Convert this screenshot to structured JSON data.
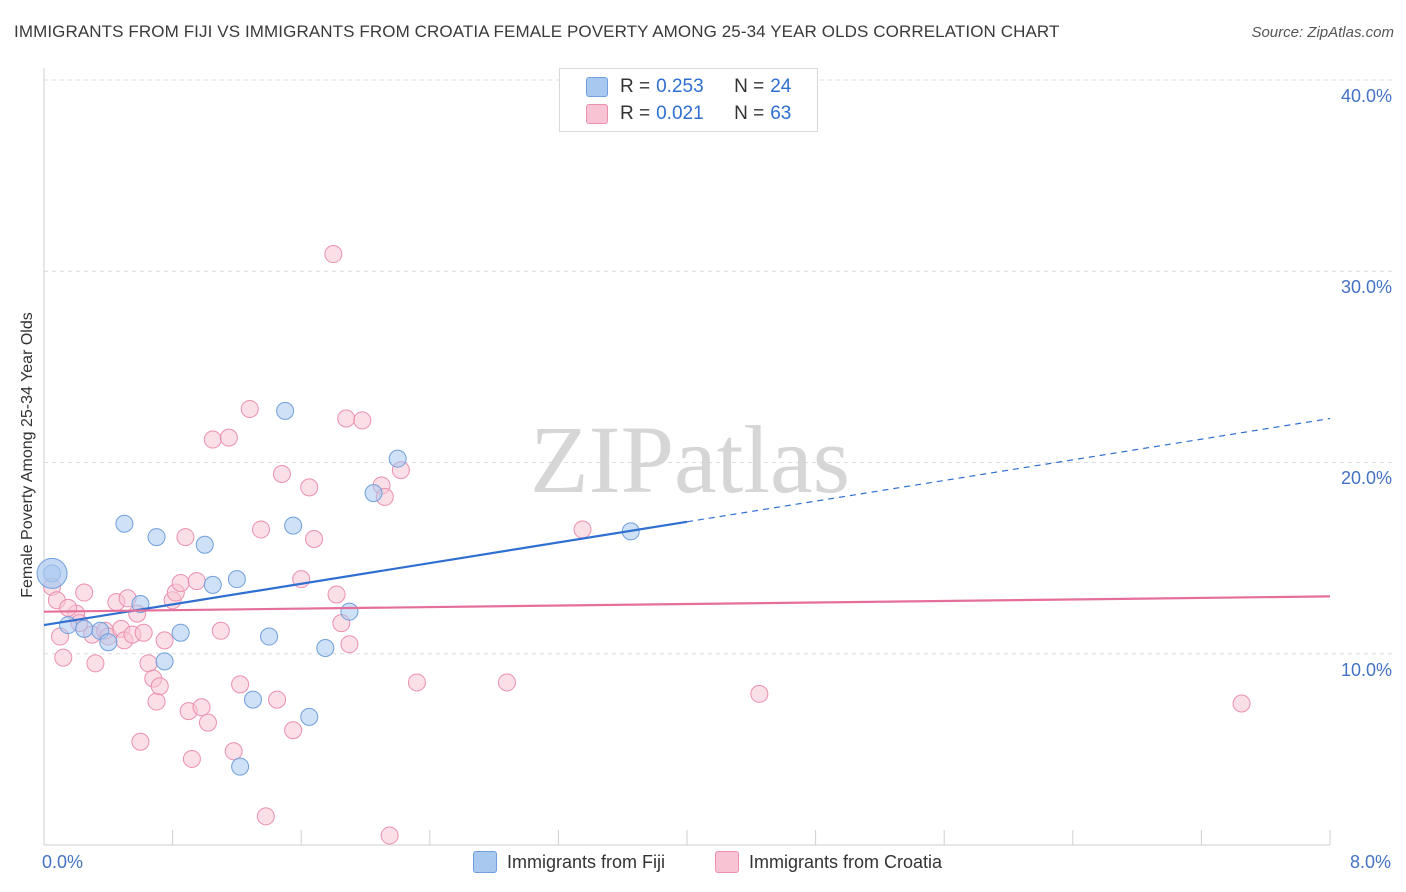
{
  "chart_data": {
    "type": "scatter",
    "title": "IMMIGRANTS FROM FIJI VS IMMIGRANTS FROM CROATIA FEMALE POVERTY AMONG 25-34 YEAR OLDS CORRELATION CHART",
    "source": "Source: ZipAtlas.com",
    "ylabel": "Female Poverty Among 25-34 Year Olds",
    "xlim": [
      0,
      8
    ],
    "ylim": [
      0,
      40
    ],
    "x_tick_labels": [
      "0.0%",
      "8.0%"
    ],
    "y_ticks": [
      10,
      20,
      30,
      40
    ],
    "y_tick_labels": [
      "10.0%",
      "20.0%",
      "30.0%",
      "40.0%"
    ],
    "watermark": "ZIPatlas",
    "series": [
      {
        "name": "Immigrants from Fiji",
        "color": "#a8c8f0",
        "edge": "#6f9fdc",
        "line_color": "#2f6fd0",
        "R": "0.253",
        "N": "24",
        "trend": {
          "x0": 0,
          "y0": 11.5,
          "x1": 8,
          "y1": 22.3,
          "solid_until": 4
        },
        "points": [
          [
            0.05,
            14.2
          ],
          [
            0.15,
            11.5
          ],
          [
            0.35,
            11.2
          ],
          [
            0.4,
            10.6
          ],
          [
            0.5,
            16.8
          ],
          [
            0.6,
            12.6
          ],
          [
            0.7,
            16.1
          ],
          [
            0.75,
            9.6
          ],
          [
            0.85,
            11.1
          ],
          [
            1.0,
            15.7
          ],
          [
            1.05,
            13.6
          ],
          [
            1.2,
            13.9
          ],
          [
            1.22,
            4.1
          ],
          [
            1.3,
            7.6
          ],
          [
            1.4,
            10.9
          ],
          [
            1.5,
            22.7
          ],
          [
            1.55,
            16.7
          ],
          [
            1.65,
            6.7
          ],
          [
            1.75,
            10.3
          ],
          [
            1.9,
            12.2
          ],
          [
            2.05,
            18.4
          ],
          [
            2.2,
            20.2
          ],
          [
            3.65,
            16.4
          ],
          [
            0.25,
            11.3
          ]
        ]
      },
      {
        "name": "Immigrants from Croatia",
        "color": "#f8c4d4",
        "edge": "#ec8fb0",
        "line_color": "#e56f9b",
        "R": "0.021",
        "N": "63",
        "trend": {
          "x0": 0,
          "y0": 12.2,
          "x1": 8,
          "y1": 13.0,
          "solid_until": 8
        },
        "points": [
          [
            0.05,
            13.5
          ],
          [
            0.08,
            12.8
          ],
          [
            0.1,
            10.9
          ],
          [
            0.12,
            9.8
          ],
          [
            0.2,
            12.1
          ],
          [
            0.22,
            11.6
          ],
          [
            0.25,
            13.2
          ],
          [
            0.3,
            11.0
          ],
          [
            0.32,
            9.5
          ],
          [
            0.38,
            11.2
          ],
          [
            0.4,
            10.9
          ],
          [
            0.45,
            12.7
          ],
          [
            0.48,
            11.3
          ],
          [
            0.5,
            10.7
          ],
          [
            0.52,
            12.9
          ],
          [
            0.55,
            11.0
          ],
          [
            0.58,
            12.1
          ],
          [
            0.6,
            5.4
          ],
          [
            0.62,
            11.1
          ],
          [
            0.65,
            9.5
          ],
          [
            0.68,
            8.7
          ],
          [
            0.7,
            7.5
          ],
          [
            0.72,
            8.3
          ],
          [
            0.75,
            10.7
          ],
          [
            0.8,
            12.8
          ],
          [
            0.82,
            13.2
          ],
          [
            0.85,
            13.7
          ],
          [
            0.88,
            16.1
          ],
          [
            0.9,
            7.0
          ],
          [
            0.92,
            4.5
          ],
          [
            0.95,
            13.8
          ],
          [
            0.98,
            7.2
          ],
          [
            1.02,
            6.4
          ],
          [
            1.05,
            21.2
          ],
          [
            1.1,
            11.2
          ],
          [
            1.15,
            21.3
          ],
          [
            1.18,
            4.9
          ],
          [
            1.22,
            8.4
          ],
          [
            1.28,
            22.8
          ],
          [
            1.35,
            16.5
          ],
          [
            1.38,
            1.5
          ],
          [
            1.45,
            7.6
          ],
          [
            1.48,
            19.4
          ],
          [
            1.55,
            6.0
          ],
          [
            1.6,
            13.9
          ],
          [
            1.65,
            18.7
          ],
          [
            1.68,
            16.0
          ],
          [
            1.8,
            30.9
          ],
          [
            1.82,
            13.1
          ],
          [
            1.85,
            11.6
          ],
          [
            1.88,
            22.3
          ],
          [
            1.9,
            10.5
          ],
          [
            1.98,
            22.2
          ],
          [
            2.1,
            18.8
          ],
          [
            2.12,
            18.2
          ],
          [
            2.15,
            0.5
          ],
          [
            2.22,
            19.6
          ],
          [
            2.32,
            8.5
          ],
          [
            2.88,
            8.5
          ],
          [
            3.35,
            16.5
          ],
          [
            4.45,
            7.9
          ],
          [
            7.45,
            7.4
          ],
          [
            0.15,
            12.4
          ]
        ]
      }
    ]
  }
}
